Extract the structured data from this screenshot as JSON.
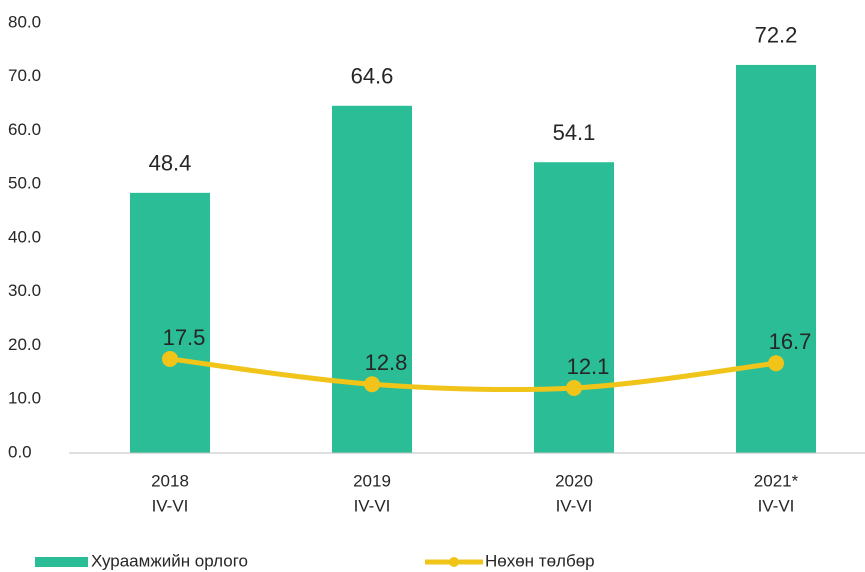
{
  "chart_data": {
    "type": "bar_line",
    "categories": [
      [
        "2018",
        "IV-VI"
      ],
      [
        "2019",
        "IV-VI"
      ],
      [
        "2020",
        "IV-VI"
      ],
      [
        "2021*",
        "IV-VI"
      ]
    ],
    "series": [
      {
        "name": "Хураамжийн орлого",
        "type": "bar",
        "color": "#2bbd96",
        "values": [
          48.4,
          64.6,
          54.1,
          72.2
        ]
      },
      {
        "name": "Нөхөн төлбөр",
        "type": "line",
        "color": "#f0c419",
        "values": [
          17.5,
          12.8,
          12.1,
          16.7
        ]
      }
    ],
    "ylim": [
      0,
      80
    ],
    "yticks": [
      {
        "value": 0,
        "label": "0.0"
      },
      {
        "value": 10,
        "label": "10.0"
      },
      {
        "value": 20,
        "label": "20.0"
      },
      {
        "value": 30,
        "label": "30.0"
      },
      {
        "value": 40,
        "label": "40.0"
      },
      {
        "value": 50,
        "label": "50.0"
      },
      {
        "value": 60,
        "label": "60.0"
      },
      {
        "value": 70,
        "label": "70.0"
      },
      {
        "value": 80,
        "label": "80.0"
      }
    ],
    "grid": false,
    "legend": "bottom"
  }
}
